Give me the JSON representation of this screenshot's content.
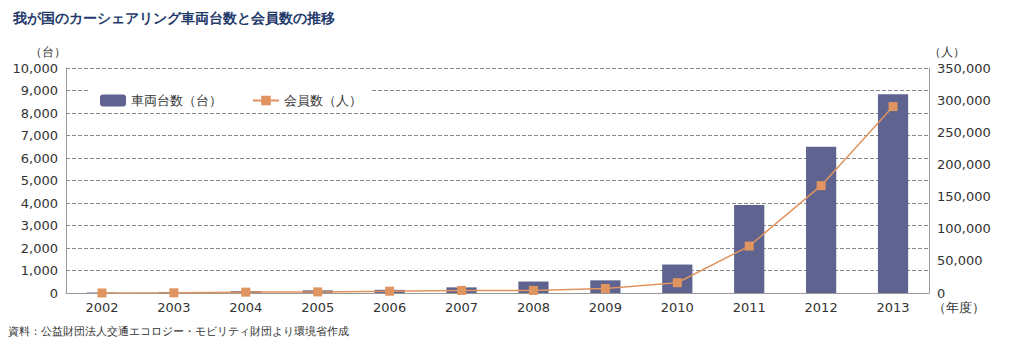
{
  "chart_data": {
    "type": "bar",
    "title": "我が国のカーシェアリング車両台数と会員数の推移",
    "source": "資料：公益財団法人交通エコロジー・モビリティ財団より環境省作成",
    "x_label": "（年度）",
    "y_label": "（台）",
    "y2_label": "（人）",
    "categories": [
      "2002",
      "2003",
      "2004",
      "2005",
      "2006",
      "2007",
      "2008",
      "2009",
      "2010",
      "2011",
      "2012",
      "2013"
    ],
    "series": [
      {
        "name": "車両台数（台）",
        "type": "bar",
        "color": "#5f6390",
        "values": [
          21,
          42,
          86,
          118,
          140,
          250,
          510,
          563,
          1265,
          3911,
          6500,
          8830
        ]
      },
      {
        "name": "会員数（人）",
        "type": "line",
        "axis": "y2",
        "color": "#e0945f",
        "marker": "square",
        "values": [
          50,
          300,
          1335,
          1712,
          2800,
          4000,
          4000,
          7000,
          16000,
          73000,
          167000,
          290000
        ]
      }
    ],
    "ylim": [
      0,
      10000
    ],
    "yticks": [
      0,
      {
        "value": 1000,
        "label": "1,000"
      },
      {
        "value": 2000,
        "label": "2,000"
      },
      {
        "value": 3000,
        "label": "3,000"
      },
      {
        "value": 4000,
        "label": "4,000"
      },
      {
        "value": 5000,
        "label": "5,000"
      },
      {
        "value": 6000,
        "label": "6,000"
      },
      {
        "value": 7000,
        "label": "7,000"
      },
      {
        "value": 8000,
        "label": "8,000"
      },
      {
        "value": 9000,
        "label": "9,000"
      },
      {
        "value": 10000,
        "label": "10,000"
      }
    ],
    "y2lim": [
      0,
      350000
    ],
    "y2ticks": [
      0,
      {
        "value": 50000,
        "label": "50,000"
      },
      {
        "value": 100000,
        "label": "100,000"
      },
      {
        "value": 150000,
        "label": "150,000"
      },
      {
        "value": 200000,
        "label": "200,000"
      },
      {
        "value": 250000,
        "label": "250,000"
      },
      {
        "value": 300000,
        "label": "300,000"
      },
      {
        "value": 350000,
        "label": "350,000"
      }
    ],
    "grid": true,
    "legend": "top-left"
  }
}
